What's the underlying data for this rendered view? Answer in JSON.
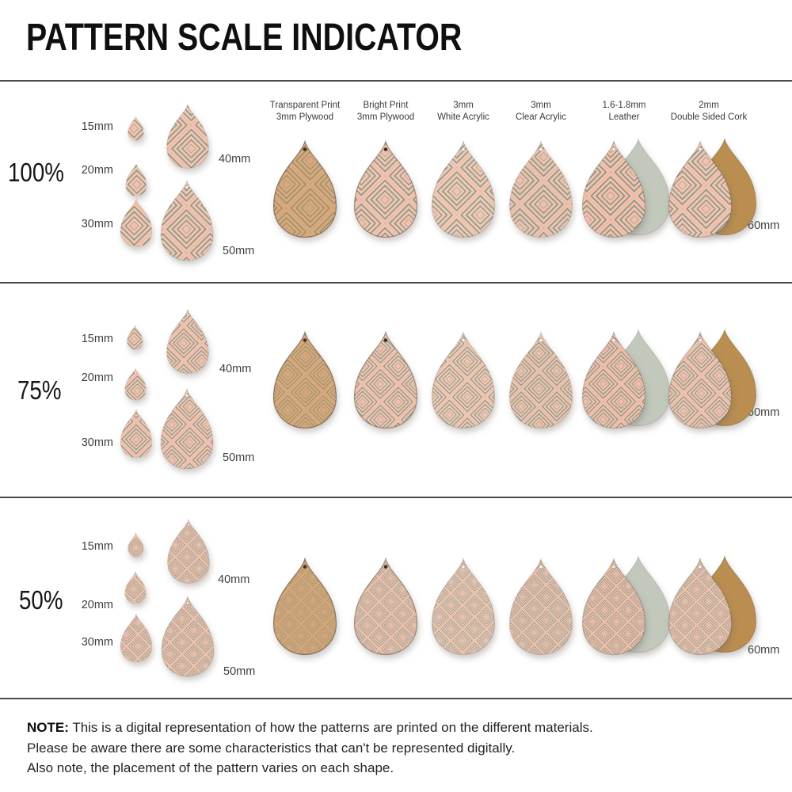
{
  "title": "PATTERN SCALE INDICATOR",
  "rows": [
    {
      "scale_label": "100%",
      "scale": 1.0,
      "small_sizes": [
        "15mm",
        "20mm",
        "30mm",
        "40mm",
        "50mm"
      ],
      "large_size_label": "60mm"
    },
    {
      "scale_label": "75%",
      "scale": 0.75,
      "small_sizes": [
        "15mm",
        "20mm",
        "30mm",
        "40mm",
        "50mm"
      ],
      "large_size_label": "60mm"
    },
    {
      "scale_label": "50%",
      "scale": 0.5,
      "small_sizes": [
        "15mm",
        "20mm",
        "30mm",
        "40mm",
        "50mm"
      ],
      "large_size_label": "60mm"
    }
  ],
  "materials": [
    {
      "label_lines": [
        "Transparent Print",
        "3mm Plywood"
      ],
      "variant": "transparent_plywood",
      "backing": null
    },
    {
      "label_lines": [
        "Bright Print",
        "3mm Plywood"
      ],
      "variant": "bright_plywood",
      "backing": null
    },
    {
      "label_lines": [
        "3mm",
        "White Acrylic"
      ],
      "variant": "white_acrylic",
      "backing": null
    },
    {
      "label_lines": [
        "3mm",
        "Clear Acrylic"
      ],
      "variant": "clear_acrylic",
      "backing": null
    },
    {
      "label_lines": [
        "1.6-1.8mm",
        "Leather"
      ],
      "variant": "leather",
      "backing": "suede"
    },
    {
      "label_lines": [
        "2mm",
        "Double Sided Cork"
      ],
      "variant": "cork",
      "backing": "cork"
    }
  ],
  "note": {
    "label": "NOTE:",
    "lines": [
      "This is a digital representation of how the patterns are printed on the different materials.",
      "Please be aware there are some characteristics that can't be represented digitally.",
      "Also note, the placement of the pattern varies on each shape."
    ]
  },
  "colors": {
    "pattern_teal": "#6D9483",
    "pattern_pink": "#F5C2AF",
    "transparent_olive": "#8F9066",
    "transparent_tan": "#DAA87E",
    "white_acrylic_teal": "#6F9886",
    "white_acrylic_pink": "#F5C6B3",
    "clear_acrylic_teal": "#75937F",
    "clear_acrylic_pink": "#EFC2AF",
    "leather_teal": "#689180",
    "leather_pink": "#F6BFAB",
    "suede_back": "#CBD0C3",
    "cork_back": "#C08F4E",
    "divider": "#4A4A4A",
    "text_dark": "#161616",
    "text_gray": "#3E3E3E"
  }
}
